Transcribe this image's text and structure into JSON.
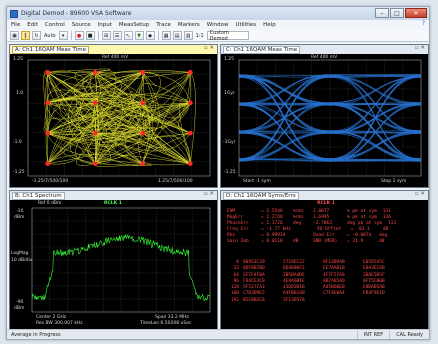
{
  "window": {
    "title": "Digital Demod - 89600 VSA Software",
    "buttons": {
      "minimize": "–",
      "maximize": "□",
      "close": "✕"
    }
  },
  "menu": {
    "items": [
      "File",
      "Edit",
      "Control",
      "Source",
      "Input",
      "MeasSetup",
      "Trace",
      "Markers",
      "Window",
      "Utilities",
      "Help"
    ],
    "help_icon": "?"
  },
  "toolbar": {
    "auto_label": "Auto",
    "combo_value": "Custom Demod",
    "zoom_label": "1:1"
  },
  "panes": {
    "a": {
      "title": "A: Ch1 16QAM Meas Time",
      "ref": "Ref 400 mV",
      "y_top": "1.25",
      "y_mid_up": "1.0",
      "y_mid_down": "-1.0",
      "y_bottom": "-1.25",
      "x_left": "-1.25/7/500/100",
      "x_right": "1.25/7/500/100",
      "colors": {
        "trace": "#ffff33",
        "points": "#ff2a2a"
      }
    },
    "b": {
      "title": "C: Ch1 16QAM Meas Time",
      "ref": "Ref 400 mV",
      "y_top": "1.25",
      "y_mid_up": "1Gyr",
      "y_mid_down": "-1Gyr",
      "y_bottom": "-1.25",
      "x_left": "Start -1  sym",
      "x_right": "Stop 1  sym",
      "colors": {
        "trace": "#2f8cff"
      }
    },
    "c": {
      "title": "B: Ch1 Spectrum",
      "ref": "Ref 0 dBm",
      "marker": "RCLK 1",
      "y_top": "-10",
      "y_unit": "dBm",
      "y_mid": "LogMag",
      "y_mid_unit": "10 dB/div",
      "y_bottom": "-90",
      "y_bottom_unit": "dBm",
      "x_left": "Center 2  GHz",
      "x_left2": "Res BW  300.007  kHz",
      "x_right": "Span 33.2  MHz",
      "x_right2": "TimeLen  6.50208  uSec",
      "colors": {
        "trace": "#33ff33"
      }
    },
    "d": {
      "title": "D: Ch1 16QAM Syms/Errs",
      "marker": "RCLK 1",
      "stats": [
        [
          "EVM",
          "= 2.5546",
          "%rms",
          "2.0077",
          "% pk at sym",
          "131"
        ],
        [
          "MagErr",
          "= 2.2740",
          "%rms",
          "1.6995",
          "% pk at sym",
          "136"
        ],
        [
          "PhaseErr",
          "= 1.1726",
          "deg",
          "-2.7063",
          "deg pk at sym",
          "121"
        ],
        [
          "Freq Err",
          "= -1.77 kHz",
          "",
          "IQ Offset",
          "= -83.1",
          "dB"
        ],
        [
          "Rho",
          "= 0.99934",
          "",
          "Quad Err",
          "= -0.0074",
          "deg"
        ],
        [
          "Gain Imb",
          "= 0.0110",
          "dB",
          "SNR (MER)",
          "= 31.9",
          "dB"
        ]
      ],
      "hex": [
        [
          "0",
          "80563C29",
          "2719EC22",
          "0F14B9AB",
          "E05D5A5C"
        ],
        [
          "32",
          "8DF8B7BD",
          "DD4D08F2",
          "EE7AAB1B",
          "E8A3EC6B"
        ],
        [
          "64",
          "2F7F4FBA",
          "2B5BA4DE",
          "4F7F5768",
          "2BAE5B5F"
        ],
        [
          "96",
          "F64CE3C9",
          "4E9A6B1E",
          "8B7A85AD",
          "8F75CB0B"
        ],
        [
          "128",
          "5F527FA3",
          "43DD3B1B",
          "A45B6BEB",
          "E8DAB5AB"
        ],
        [
          "160",
          "C7B3D9E5",
          "A4FB61AB",
          "C7F4E0A4",
          "FB4F9E1D"
        ],
        [
          "192",
          "B5C0B2C8",
          "2F13D578",
          "",
          ""
        ]
      ]
    }
  },
  "status": {
    "left": "Average in Progress",
    "cells": [
      "INT REF",
      "CAL  Ready"
    ]
  }
}
